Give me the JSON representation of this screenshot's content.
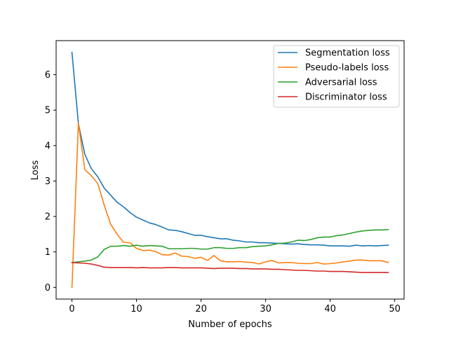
{
  "chart_data": {
    "type": "line",
    "title": "",
    "xlabel": "Number of epochs",
    "ylabel": "Loss",
    "xlim": [
      -2.45,
      51.45
    ],
    "ylim": [
      -0.33,
      6.96
    ],
    "xticks": [
      0,
      10,
      20,
      30,
      40,
      50
    ],
    "yticks": [
      0,
      1,
      2,
      3,
      4,
      5,
      6
    ],
    "grid": false,
    "legend_position": "top-right",
    "x": [
      0,
      1,
      2,
      3,
      4,
      5,
      6,
      7,
      8,
      9,
      10,
      11,
      12,
      13,
      14,
      15,
      16,
      17,
      18,
      19,
      20,
      21,
      22,
      23,
      24,
      25,
      26,
      27,
      28,
      29,
      30,
      31,
      32,
      33,
      34,
      35,
      36,
      37,
      38,
      39,
      40,
      41,
      42,
      43,
      44,
      45,
      46,
      47,
      48,
      49
    ],
    "series": [
      {
        "name": "Segmentation loss",
        "color": "#1f77b4",
        "values": [
          6.63,
          4.62,
          3.75,
          3.35,
          3.12,
          2.8,
          2.6,
          2.4,
          2.27,
          2.11,
          1.98,
          1.9,
          1.82,
          1.77,
          1.7,
          1.62,
          1.61,
          1.57,
          1.52,
          1.47,
          1.47,
          1.43,
          1.4,
          1.37,
          1.37,
          1.33,
          1.31,
          1.28,
          1.28,
          1.26,
          1.26,
          1.25,
          1.24,
          1.23,
          1.22,
          1.23,
          1.21,
          1.2,
          1.2,
          1.19,
          1.17,
          1.17,
          1.17,
          1.16,
          1.19,
          1.17,
          1.18,
          1.17,
          1.18,
          1.19
        ]
      },
      {
        "name": "Pseudo-labels loss",
        "color": "#ff7f0e",
        "values": [
          0.0,
          4.63,
          3.32,
          3.15,
          2.93,
          2.32,
          1.78,
          1.5,
          1.27,
          1.26,
          1.1,
          1.04,
          1.05,
          1.01,
          0.92,
          0.91,
          0.97,
          0.88,
          0.87,
          0.82,
          0.85,
          0.76,
          0.9,
          0.75,
          0.72,
          0.72,
          0.73,
          0.71,
          0.7,
          0.66,
          0.72,
          0.76,
          0.69,
          0.7,
          0.7,
          0.68,
          0.67,
          0.67,
          0.7,
          0.66,
          0.67,
          0.69,
          0.72,
          0.74,
          0.77,
          0.77,
          0.75,
          0.75,
          0.75,
          0.7
        ]
      },
      {
        "name": "Adversarial loss",
        "color": "#2ca02c",
        "values": [
          0.7,
          0.72,
          0.74,
          0.77,
          0.86,
          1.07,
          1.16,
          1.16,
          1.18,
          1.16,
          1.19,
          1.16,
          1.18,
          1.17,
          1.16,
          1.09,
          1.09,
          1.09,
          1.1,
          1.1,
          1.08,
          1.08,
          1.12,
          1.12,
          1.1,
          1.1,
          1.12,
          1.12,
          1.15,
          1.16,
          1.17,
          1.2,
          1.24,
          1.25,
          1.28,
          1.33,
          1.32,
          1.35,
          1.4,
          1.42,
          1.42,
          1.46,
          1.48,
          1.52,
          1.56,
          1.59,
          1.61,
          1.62,
          1.62,
          1.63
        ]
      },
      {
        "name": "Discriminator loss",
        "color": "#d62728",
        "values": [
          0.7,
          0.69,
          0.68,
          0.66,
          0.62,
          0.57,
          0.56,
          0.56,
          0.56,
          0.56,
          0.55,
          0.56,
          0.55,
          0.55,
          0.55,
          0.56,
          0.56,
          0.55,
          0.55,
          0.55,
          0.55,
          0.54,
          0.53,
          0.54,
          0.54,
          0.54,
          0.53,
          0.53,
          0.52,
          0.52,
          0.52,
          0.51,
          0.51,
          0.5,
          0.49,
          0.48,
          0.48,
          0.47,
          0.46,
          0.46,
          0.45,
          0.45,
          0.45,
          0.44,
          0.43,
          0.42,
          0.42,
          0.42,
          0.42,
          0.42
        ]
      }
    ]
  }
}
